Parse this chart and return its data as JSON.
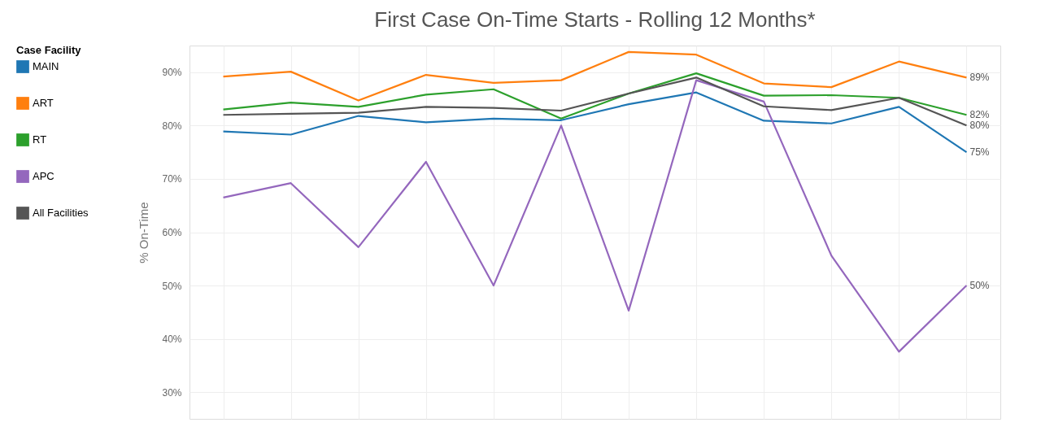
{
  "chart_data": {
    "type": "line",
    "title": "First Case On-Time Starts - Rolling 12 Months*",
    "ylabel": "% On-Time",
    "legend_title": "Case Facility",
    "categories": [
      null,
      null,
      null,
      null,
      null,
      null,
      null,
      null,
      null,
      null,
      null,
      null
    ],
    "series": [
      {
        "name": "MAIN",
        "color": "#1f77b4",
        "values": [
          78.9,
          78.3,
          81.8,
          80.6,
          81.3,
          81.0,
          84.0,
          86.2,
          80.9,
          80.4,
          83.5,
          75
        ],
        "value_labels": [
          null,
          null,
          null,
          null,
          null,
          null,
          null,
          null,
          null,
          null,
          null,
          "75%"
        ]
      },
      {
        "name": "ART",
        "color": "#ff7f0e",
        "values": [
          89.2,
          90.1,
          84.7,
          89.5,
          88.0,
          88.5,
          93.8,
          93.3,
          87.9,
          87.2,
          92.0,
          89
        ],
        "value_labels": [
          null,
          null,
          null,
          null,
          null,
          null,
          null,
          null,
          null,
          null,
          null,
          "89%"
        ]
      },
      {
        "name": "RT",
        "color": "#2ca02c",
        "values": [
          83.0,
          84.3,
          83.5,
          85.8,
          86.8,
          81.3,
          86.0,
          89.8,
          85.6,
          85.7,
          85.2,
          82
        ],
        "value_labels": [
          null,
          null,
          null,
          null,
          null,
          null,
          null,
          null,
          null,
          null,
          null,
          "82%"
        ]
      },
      {
        "name": "APC",
        "color": "#9467bd",
        "values": [
          66.5,
          69.2,
          57.2,
          73.2,
          50.0,
          80.0,
          45.3,
          88.5,
          84.5,
          55.6,
          37.6,
          50
        ],
        "value_labels": [
          null,
          null,
          null,
          null,
          null,
          null,
          null,
          null,
          null,
          null,
          null,
          "50%"
        ]
      },
      {
        "name": "All Facilities",
        "color": "#555555",
        "values": [
          82.0,
          82.2,
          82.4,
          83.5,
          83.3,
          82.8,
          86.0,
          89.0,
          83.6,
          82.9,
          85.2,
          80
        ],
        "value_labels": [
          null,
          null,
          null,
          null,
          null,
          null,
          null,
          null,
          null,
          null,
          null,
          "80%"
        ]
      }
    ],
    "ylim": [
      25,
      95
    ],
    "yticks": [
      {
        "value": 30,
        "label": "30%"
      },
      {
        "value": 40,
        "label": "40%"
      },
      {
        "value": 50,
        "label": "50%"
      },
      {
        "value": 60,
        "label": "60%"
      },
      {
        "value": 70,
        "label": "70%"
      },
      {
        "value": 80,
        "label": "80%"
      },
      {
        "value": 90,
        "label": "90%"
      }
    ],
    "grid": true,
    "legend": "left",
    "tick_labels": "y",
    "line_style": "solid"
  }
}
